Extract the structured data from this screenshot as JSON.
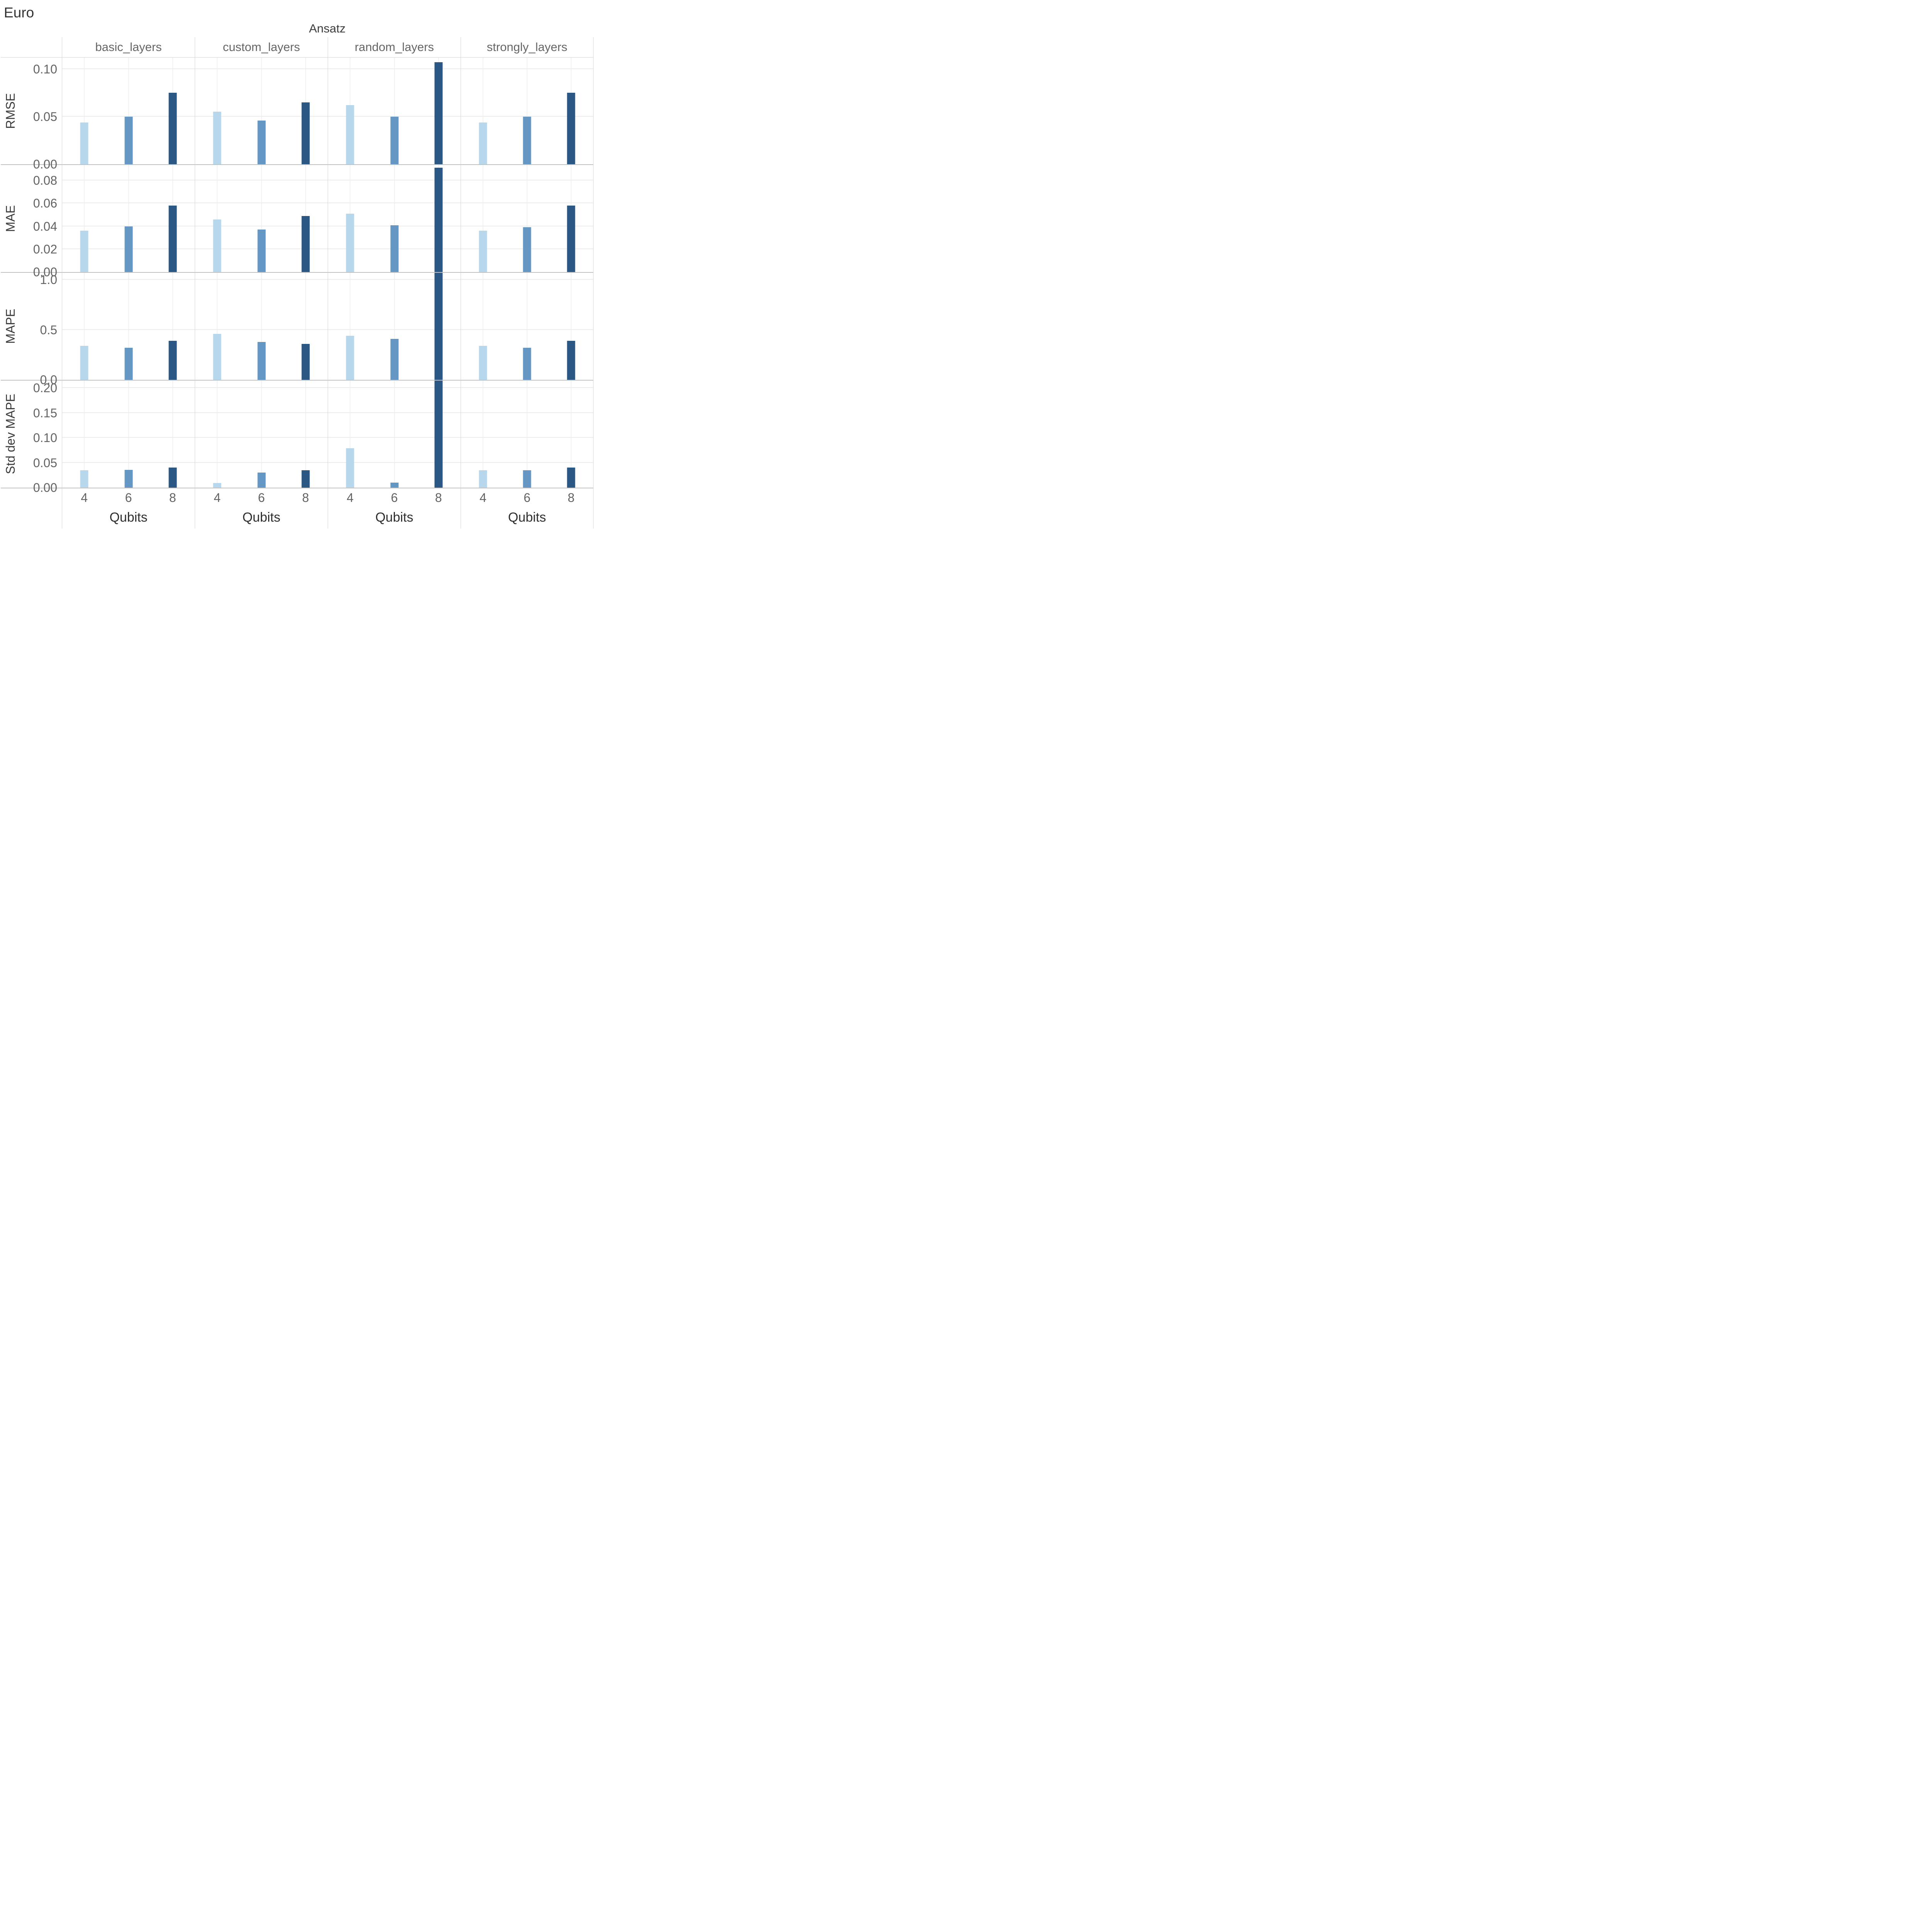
{
  "chart_data": {
    "type": "bar",
    "title": "Euro",
    "col_facet_title": "Ansatz",
    "col_facets": [
      "basic_layers",
      "custom_layers",
      "random_layers",
      "strongly_layers"
    ],
    "x": [
      "4",
      "6",
      "8"
    ],
    "xlabel": "Qubits",
    "grid": "on",
    "legend": "none",
    "palette": {
      "qubits_4": "#b7d8ec",
      "qubits_6": "#6497c3",
      "qubits_8": "#2a5783"
    },
    "category_positions_pct": [
      16.667,
      50,
      83.333
    ],
    "rows": [
      {
        "metric": "RMSE",
        "ylim": [
          0,
          0.112
        ],
        "yticks": [
          {
            "label": "0.00",
            "value": 0
          },
          {
            "label": "0.05",
            "value": 0.05
          },
          {
            "label": "0.10",
            "value": 0.1
          }
        ],
        "series": [
          {
            "name": "basic_layers",
            "values": [
              0.044,
              0.05,
              0.075
            ]
          },
          {
            "name": "custom_layers",
            "values": [
              0.055,
              0.046,
              0.065
            ]
          },
          {
            "name": "random_layers",
            "values": [
              0.062,
              0.05,
              0.107
            ]
          },
          {
            "name": "strongly_layers",
            "values": [
              0.044,
              0.05,
              0.075
            ]
          }
        ]
      },
      {
        "metric": "MAE",
        "ylim": [
          0,
          0.0935
        ],
        "yticks": [
          {
            "label": "0.00",
            "value": 0
          },
          {
            "label": "0.02",
            "value": 0.02
          },
          {
            "label": "0.04",
            "value": 0.04
          },
          {
            "label": "0.06",
            "value": 0.06
          },
          {
            "label": "0.08",
            "value": 0.08
          }
        ],
        "series": [
          {
            "name": "basic_layers",
            "values": [
              0.036,
              0.04,
              0.058
            ]
          },
          {
            "name": "custom_layers",
            "values": [
              0.046,
              0.037,
              0.049
            ]
          },
          {
            "name": "random_layers",
            "values": [
              0.051,
              0.041,
              0.091
            ]
          },
          {
            "name": "strongly_layers",
            "values": [
              0.036,
              0.039,
              0.058
            ]
          }
        ]
      },
      {
        "metric": "MAPE",
        "ylim": [
          0,
          1.07
        ],
        "yticks": [
          {
            "label": "0.0",
            "value": 0
          },
          {
            "label": "0.5",
            "value": 0.5
          },
          {
            "label": "1.0",
            "value": 1.0
          }
        ],
        "series": [
          {
            "name": "basic_layers",
            "values": [
              0.34,
              0.32,
              0.39
            ]
          },
          {
            "name": "custom_layers",
            "values": [
              0.46,
              0.38,
              0.36
            ]
          },
          {
            "name": "random_layers",
            "values": [
              0.44,
              0.41,
              1.07
            ]
          },
          {
            "name": "strongly_layers",
            "values": [
              0.34,
              0.32,
              0.39
            ]
          }
        ]
      },
      {
        "metric": "Std dev MAPE",
        "ylim": [
          0,
          0.215
        ],
        "yticks": [
          {
            "label": "0.00",
            "value": 0
          },
          {
            "label": "0.05",
            "value": 0.05
          },
          {
            "label": "0.10",
            "value": 0.1
          },
          {
            "label": "0.15",
            "value": 0.15
          },
          {
            "label": "0.20",
            "value": 0.2
          }
        ],
        "series": [
          {
            "name": "basic_layers",
            "values": [
              0.035,
              0.036,
              0.04
            ]
          },
          {
            "name": "custom_layers",
            "values": [
              0.009,
              0.03,
              0.035
            ]
          },
          {
            "name": "random_layers",
            "values": [
              0.079,
              0.01,
              0.22
            ]
          },
          {
            "name": "strongly_layers",
            "values": [
              0.035,
              0.035,
              0.04
            ]
          }
        ]
      }
    ]
  }
}
